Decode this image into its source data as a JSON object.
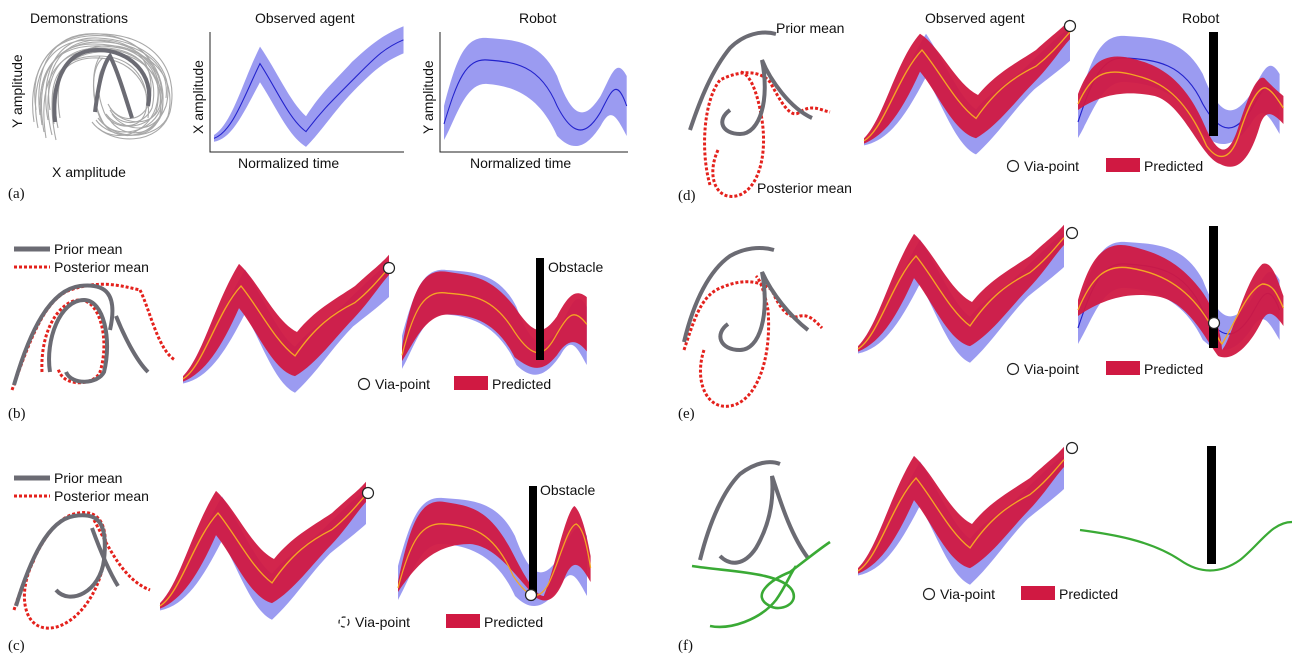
{
  "panel_labels": {
    "a": "(a)",
    "b": "(b)",
    "c": "(c)",
    "d": "(d)",
    "e": "(e)",
    "f": "(f)"
  },
  "a": {
    "demo_title": "Demonstrations",
    "demo_ylabel": "Y amplitude",
    "demo_xlabel": "X amplitude",
    "observed_title": "Observed agent",
    "observed_ylabel": "X amplitude",
    "observed_xlabel": "Normalized time",
    "robot_title": "Robot",
    "robot_ylabel": "Y amplitude",
    "robot_xlabel": "Normalized time"
  },
  "b": {
    "legend_prior": "Prior mean",
    "legend_posterior": "Posterior mean",
    "obstacle": "Obstacle",
    "via_point": "Via-point",
    "predicted": "Predicted"
  },
  "c": {
    "legend_prior": "Prior mean",
    "legend_posterior": "Posterior mean",
    "obstacle": "Obstacle",
    "via_point": "Via-point",
    "predicted": "Predicted"
  },
  "d": {
    "prior_mean": "Prior mean",
    "posterior_mean": "Posterior mean",
    "observed_title": "Observed agent",
    "robot_title": "Robot",
    "via_point": "Via-point",
    "predicted": "Predicted"
  },
  "e": {
    "via_point": "Via-point",
    "predicted": "Predicted"
  },
  "f": {
    "via_point": "Via-point",
    "predicted": "Predicted"
  },
  "colors": {
    "prior_mean": "#6b6b73",
    "posterior_mean": "#e4211c",
    "demo_prior_band": "#8a8aee",
    "predicted_band": "#d01942",
    "mean_line": "#2222cc",
    "predicted_line": "#f5a623",
    "obstacle": "#000000",
    "executed_trajectory": "#3aaa35",
    "demo_traces": "#a8a8a8"
  }
}
